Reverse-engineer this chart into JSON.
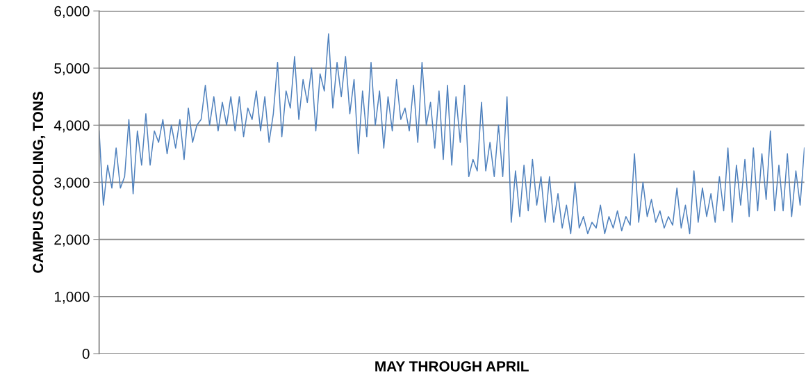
{
  "chart_data": {
    "type": "line",
    "xlabel": "MAY THROUGH APRIL",
    "ylabel": "CAMPUS COOLING, TONS",
    "categories": [
      null,
      null,
      null,
      null,
      null,
      null,
      null,
      null,
      null,
      null,
      null,
      null,
      null,
      null,
      null,
      null,
      null,
      null,
      null,
      null,
      null,
      null,
      null,
      null,
      null,
      null,
      null,
      null,
      null,
      null,
      null,
      null,
      null,
      null,
      null,
      null,
      null,
      null,
      null,
      null,
      null,
      null,
      null,
      null,
      null,
      null,
      null,
      null,
      null,
      null,
      null,
      null,
      null,
      null,
      null,
      null,
      null,
      null,
      null,
      null,
      null,
      null,
      null,
      null,
      null,
      null,
      null,
      null,
      null,
      null,
      null,
      null,
      null,
      null,
      null,
      null,
      null,
      null,
      null,
      null,
      null,
      null,
      null,
      null,
      null,
      null,
      null,
      null,
      null,
      null,
      null,
      null,
      null,
      null,
      null,
      null,
      null,
      null,
      null,
      null,
      null,
      null,
      null,
      null,
      null,
      null,
      null,
      null,
      null,
      null,
      null,
      null,
      null,
      null,
      null,
      null,
      null,
      null,
      null,
      null,
      null,
      null,
      null,
      null,
      null,
      null,
      null,
      null,
      null,
      null,
      null,
      null,
      null,
      null,
      null,
      null,
      null,
      null,
      null,
      null,
      null,
      null,
      null,
      null,
      null,
      null,
      null,
      null,
      null,
      null,
      null,
      null,
      null,
      null,
      null,
      null,
      null,
      null,
      null,
      null,
      null,
      null,
      null,
      null,
      null,
      null,
      null
    ],
    "series": [
      {
        "color": "#4f81bd",
        "values": [
          3900,
          2600,
          3300,
          2900,
          3600,
          2900,
          3100,
          4100,
          2800,
          3900,
          3300,
          4200,
          3300,
          3900,
          3700,
          4100,
          3500,
          4000,
          3600,
          4100,
          3400,
          4300,
          3700,
          4000,
          4100,
          4700,
          4000,
          4500,
          3900,
          4400,
          4000,
          4500,
          3900,
          4500,
          3800,
          4300,
          4100,
          4600,
          3900,
          4500,
          3700,
          4200,
          5100,
          3800,
          4600,
          4300,
          5200,
          4100,
          4800,
          4400,
          5000,
          3900,
          4900,
          4600,
          5600,
          4300,
          5100,
          4500,
          5200,
          4200,
          4800,
          3500,
          4600,
          3800,
          5100,
          4000,
          4600,
          3600,
          4500,
          3900,
          4800,
          4100,
          4300,
          3900,
          4700,
          3700,
          5100,
          4000,
          4400,
          3600,
          4600,
          3400,
          4700,
          3300,
          4500,
          3700,
          4700,
          3100,
          3400,
          3200,
          4400,
          3200,
          3700,
          3100,
          4000,
          3100,
          4500,
          2300,
          3200,
          2400,
          3300,
          2500,
          3400,
          2600,
          3100,
          2300,
          3100,
          2300,
          2800,
          2200,
          2600,
          2100,
          3000,
          2200,
          2400,
          2100,
          2300,
          2200,
          2600,
          2100,
          2400,
          2200,
          2500,
          2150,
          2400,
          2250,
          3500,
          2300,
          3000,
          2400,
          2700,
          2300,
          2500,
          2200,
          2400,
          2250,
          2900,
          2200,
          2600,
          2100,
          3200,
          2300,
          2900,
          2400,
          2800,
          2300,
          3100,
          2500,
          3600,
          2300,
          3300,
          2600,
          3400,
          2400,
          3600,
          2500,
          3500,
          2700,
          3900,
          2500,
          3300,
          2500,
          3500,
          2400,
          3200,
          2600,
          3600
        ]
      }
    ],
    "ylim": [
      0,
      6000
    ],
    "yticks": [
      0,
      {
        "value": 1000,
        "label": "1,000"
      },
      {
        "value": 2000,
        "label": "2,000"
      },
      {
        "value": 3000,
        "label": "3,000"
      },
      {
        "value": 4000,
        "label": "4,000"
      },
      {
        "value": 5000,
        "label": "5,000"
      },
      {
        "value": 6000,
        "label": "6,000"
      }
    ],
    "grid": "y",
    "marker": "none",
    "line_style": "solid",
    "legend": false
  }
}
